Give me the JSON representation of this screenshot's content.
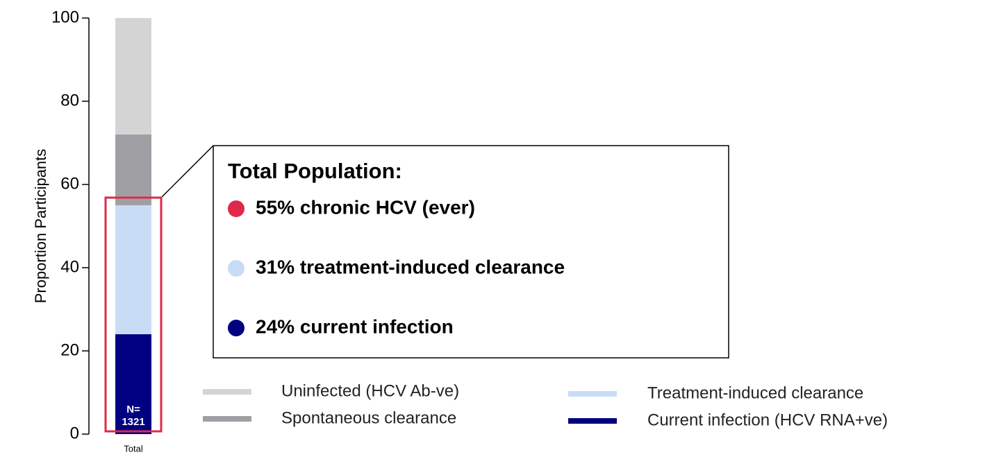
{
  "chart_data": {
    "type": "stacked_bar",
    "categories": [
      "Total"
    ],
    "ylabel": "Proportion Participants",
    "ylim": [
      0,
      100
    ],
    "yticks": [
      0,
      20,
      40,
      60,
      80,
      100
    ],
    "series": [
      {
        "name": "Current infection (HCV RNA+ve)",
        "color": "#000080",
        "values": [
          24
        ]
      },
      {
        "name": "Treatment-induced clearance",
        "color": "#c9dcf5",
        "values": [
          31
        ]
      },
      {
        "name": "Spontaneous clearance",
        "color": "#a0a0a4",
        "values": [
          17
        ]
      },
      {
        "name": "Uninfected (HCV Ab-ve)",
        "color": "#d4d4d4",
        "values": [
          28
        ]
      }
    ],
    "bar_label": [
      "N=",
      "1321"
    ],
    "annotation": {
      "title": "Total Population:",
      "items": [
        {
          "text": "55% chronic HCV (ever)",
          "color": "#e0284a"
        },
        {
          "text": "31% treatment-induced clearance",
          "color": "#c9dcf5"
        },
        {
          "text": "24% current infection",
          "color": "#000080"
        }
      ]
    }
  }
}
